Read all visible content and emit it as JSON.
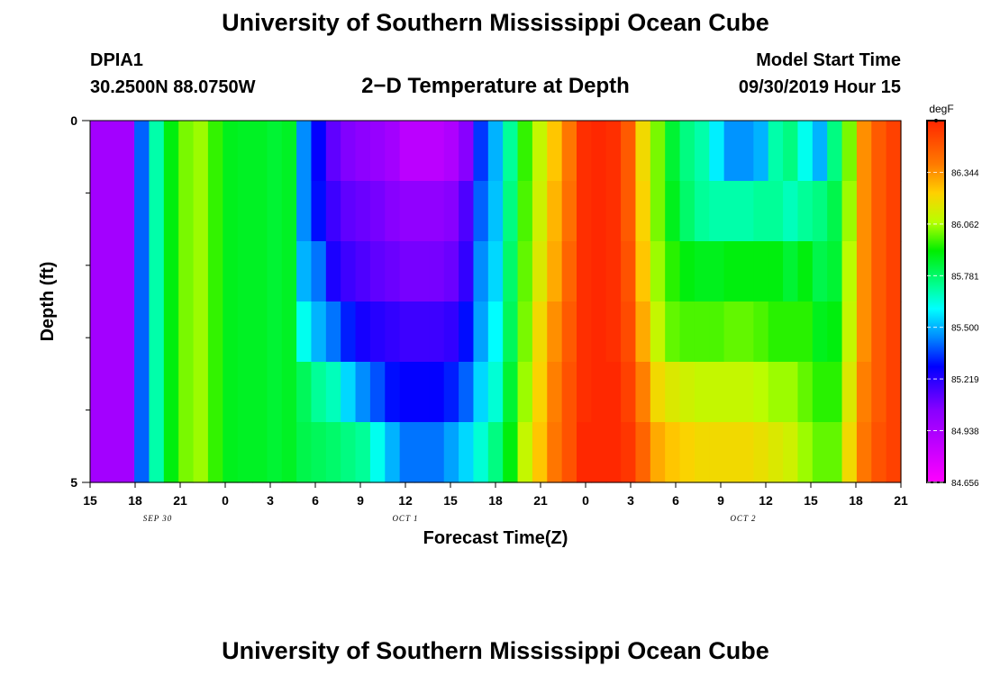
{
  "header": {
    "title": "University of Southern Mississippi Ocean Cube",
    "station_id": "DPIA1",
    "station_coords": "30.2500N 88.0750W",
    "plot_title": "2−D Temperature at Depth",
    "model_label": "Model Start Time",
    "model_time": "09/30/2019 Hour 15"
  },
  "footer": {
    "title": "University of Southern Mississippi Ocean Cube"
  },
  "chart_data": {
    "type": "heatmap",
    "title": "2−D Temperature at Depth",
    "xlabel": "Forecast Time(Z)",
    "ylabel": "Depth (ft)",
    "unit": "degF",
    "x_tick_labels": [
      "15",
      "18",
      "21",
      "0",
      "3",
      "6",
      "9",
      "12",
      "15",
      "18",
      "21",
      "0",
      "3",
      "6",
      "9",
      "12",
      "15",
      "18",
      "21"
    ],
    "x_day_labels": [
      {
        "label": "SEP 30",
        "at_tick": 1.5
      },
      {
        "label": "OCT 1",
        "at_tick": 7
      },
      {
        "label": "OCT 2",
        "at_tick": 14.5
      }
    ],
    "y_range": [
      0,
      5
    ],
    "y_tick_labels": [
      "0",
      "5"
    ],
    "y_minor_ticks": 5,
    "colorbar_range": [
      84.656,
      86.625
    ],
    "colorbar_ticks": [
      86.344,
      86.062,
      85.781,
      85.5,
      85.219,
      84.938,
      84.656
    ],
    "colorbar_tick_labels": [
      "86.344",
      "86.062",
      "85.781",
      "85.500",
      "85.219",
      "84.938",
      "84.656"
    ],
    "hours": [
      0,
      1,
      2,
      3,
      4,
      5,
      6,
      7,
      8,
      9,
      10,
      11,
      12,
      13,
      14,
      15,
      16,
      17,
      18,
      19,
      20,
      21,
      22,
      23,
      24,
      25,
      26,
      27,
      28,
      29,
      30,
      31,
      32,
      33,
      34,
      35,
      36,
      37,
      38,
      39,
      40,
      41,
      42,
      43,
      44,
      45,
      46,
      47,
      48,
      49,
      50,
      51,
      52,
      53,
      54
    ],
    "depth_rows": [
      [
        84.96,
        84.96,
        84.96,
        85.4,
        85.7,
        85.9,
        86.02,
        86.05,
        85.96,
        85.88,
        85.87,
        85.87,
        85.85,
        85.87,
        85.45,
        85.28,
        85.12,
        85.06,
        85.03,
        85.0,
        84.96,
        84.88,
        84.88,
        84.88,
        84.92,
        85.05,
        85.35,
        85.5,
        85.72,
        85.96,
        86.1,
        86.25,
        86.4,
        86.6,
        86.62,
        86.6,
        86.48,
        86.2,
        86.02,
        85.85,
        85.75,
        85.7,
        85.58,
        85.46,
        85.46,
        85.5,
        85.7,
        85.75,
        85.62,
        85.5,
        85.75,
        86.02,
        86.35,
        86.48,
        86.55
      ],
      [
        84.96,
        84.96,
        84.96,
        85.4,
        85.7,
        85.9,
        86.02,
        86.05,
        85.96,
        85.88,
        85.87,
        85.87,
        85.85,
        85.87,
        85.45,
        85.3,
        85.18,
        85.12,
        85.1,
        85.08,
        85.05,
        85.02,
        85.02,
        85.02,
        85.05,
        85.15,
        85.4,
        85.52,
        85.75,
        85.98,
        86.12,
        86.28,
        86.42,
        86.6,
        86.62,
        86.6,
        86.48,
        86.22,
        86.02,
        85.88,
        85.78,
        85.72,
        85.7,
        85.7,
        85.7,
        85.72,
        85.72,
        85.68,
        85.72,
        85.75,
        85.82,
        86.05,
        86.35,
        86.48,
        86.55
      ],
      [
        84.96,
        84.96,
        84.96,
        85.4,
        85.7,
        85.9,
        86.02,
        86.05,
        85.96,
        85.88,
        85.87,
        85.87,
        85.85,
        85.87,
        85.5,
        85.42,
        85.24,
        85.18,
        85.15,
        85.12,
        85.1,
        85.08,
        85.08,
        85.08,
        85.1,
        85.2,
        85.45,
        85.55,
        85.78,
        86.0,
        86.15,
        86.3,
        86.45,
        86.6,
        86.62,
        86.6,
        86.5,
        86.25,
        86.05,
        85.95,
        85.9,
        85.88,
        85.88,
        85.9,
        85.9,
        85.9,
        85.9,
        85.85,
        85.9,
        85.82,
        85.85,
        86.08,
        86.35,
        86.48,
        86.55
      ],
      [
        84.96,
        84.96,
        84.96,
        85.4,
        85.7,
        85.9,
        86.02,
        86.05,
        85.96,
        85.88,
        85.87,
        85.87,
        85.85,
        85.87,
        85.62,
        85.5,
        85.42,
        85.32,
        85.25,
        85.22,
        85.2,
        85.18,
        85.18,
        85.18,
        85.2,
        85.3,
        85.48,
        85.6,
        85.8,
        86.02,
        86.2,
        86.35,
        86.48,
        86.6,
        86.62,
        86.6,
        86.52,
        86.3,
        86.1,
        86.0,
        85.98,
        85.98,
        85.98,
        86.0,
        86.0,
        85.98,
        85.95,
        85.95,
        85.95,
        85.88,
        85.9,
        86.1,
        86.35,
        86.48,
        86.55
      ],
      [
        84.96,
        84.96,
        84.96,
        85.4,
        85.7,
        85.9,
        86.02,
        86.05,
        85.96,
        85.88,
        85.87,
        85.87,
        85.85,
        85.87,
        85.8,
        85.72,
        85.68,
        85.55,
        85.45,
        85.38,
        85.3,
        85.28,
        85.28,
        85.28,
        85.32,
        85.4,
        85.55,
        85.65,
        85.85,
        86.05,
        86.22,
        86.38,
        86.5,
        86.6,
        86.62,
        86.62,
        86.55,
        86.38,
        86.2,
        86.15,
        86.12,
        86.1,
        86.1,
        86.1,
        86.1,
        86.08,
        86.05,
        86.05,
        86.0,
        85.95,
        85.95,
        86.15,
        86.38,
        86.48,
        86.55
      ],
      [
        84.96,
        84.96,
        84.96,
        85.4,
        85.7,
        85.9,
        86.02,
        86.05,
        85.96,
        85.88,
        85.87,
        85.87,
        85.85,
        85.87,
        85.82,
        85.8,
        85.78,
        85.75,
        85.72,
        85.62,
        85.5,
        85.42,
        85.42,
        85.42,
        85.48,
        85.55,
        85.65,
        85.75,
        85.9,
        86.1,
        86.25,
        86.4,
        86.5,
        86.62,
        86.62,
        86.62,
        86.58,
        86.45,
        86.3,
        86.25,
        86.22,
        86.2,
        86.2,
        86.2,
        86.2,
        86.18,
        86.15,
        86.12,
        86.05,
        86.0,
        86.0,
        86.2,
        86.4,
        86.5,
        86.55
      ]
    ]
  }
}
